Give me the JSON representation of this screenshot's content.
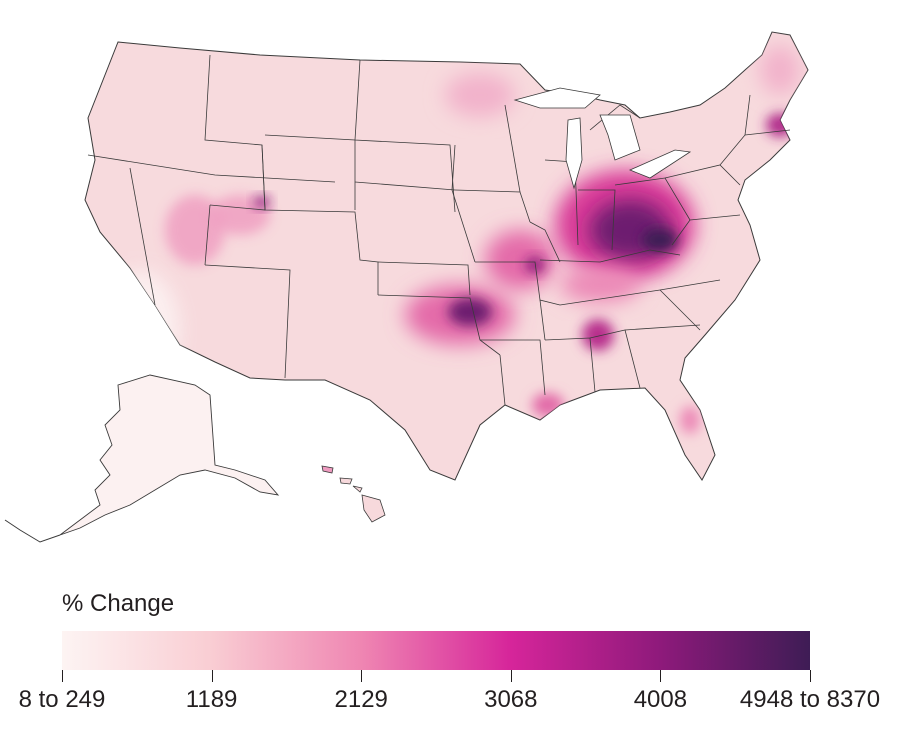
{
  "legend": {
    "title": "% Change",
    "tick_labels": [
      "8 to 249",
      "1189",
      "2129",
      "3068",
      "4008",
      "4948 to 8370"
    ],
    "gradient_colors": [
      "#fdf4f3",
      "#f9cdd3",
      "#ef86b2",
      "#d6259a",
      "#8e1a7b",
      "#3e1c55"
    ]
  },
  "map": {
    "state_fill": "#f7d9dc",
    "hotspot_colors": {
      "light": "#ef9bc0",
      "medium": "#d93a98",
      "dark": "#7b1f77",
      "darkest": "#3e1c55"
    },
    "outline_color": "#3a3a3a"
  }
}
